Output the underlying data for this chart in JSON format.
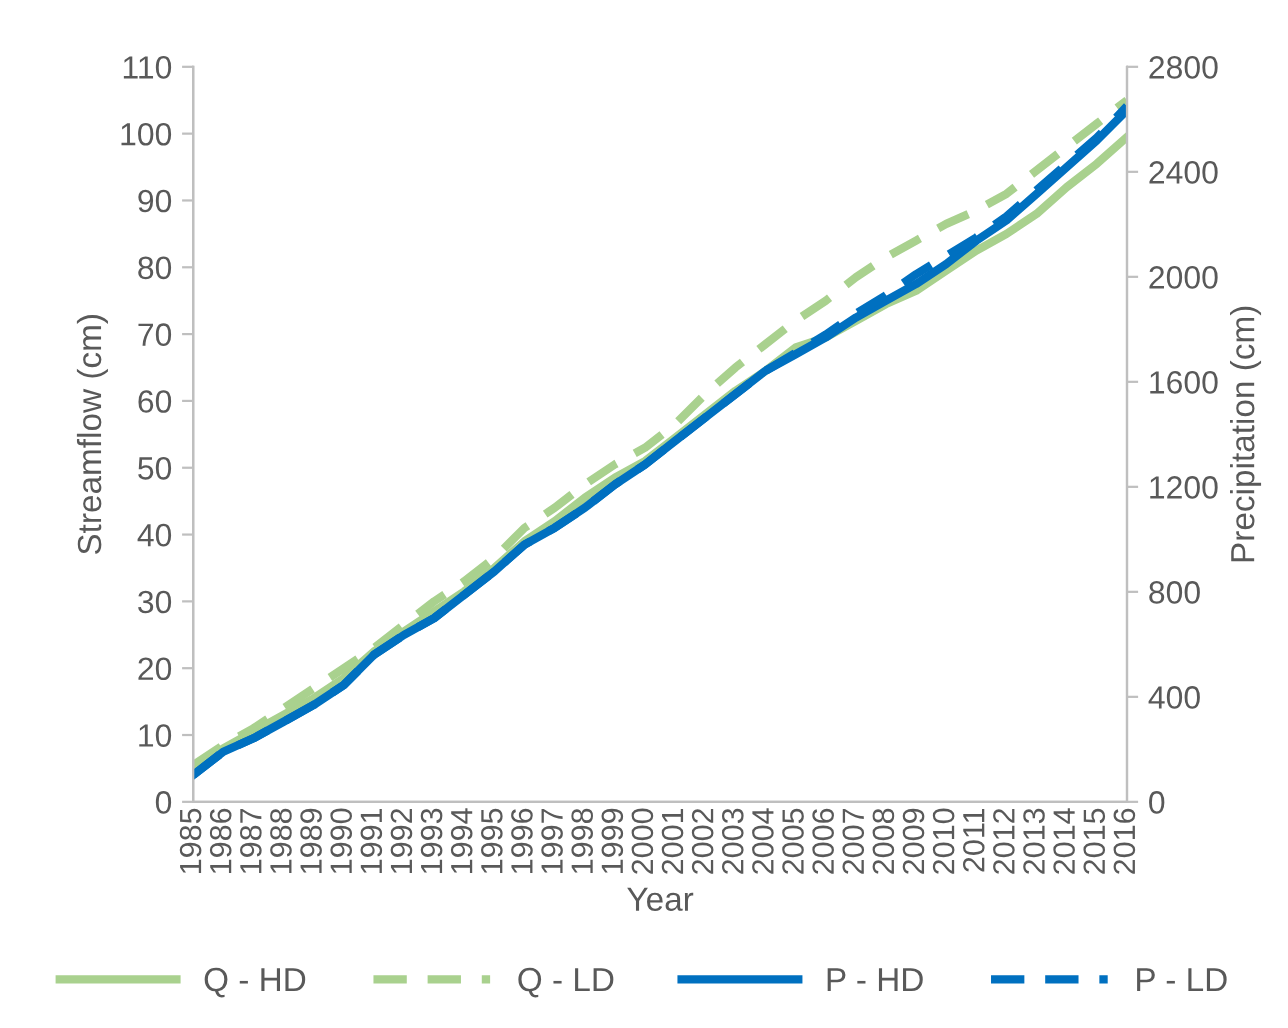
{
  "chart_data": {
    "type": "line",
    "xlabel": "Year",
    "ylabel": "Streamflow (cm)",
    "y2label": "Precipitation (cm)",
    "categories": [
      "1985",
      "1986",
      "1987",
      "1988",
      "1989",
      "1990",
      "1991",
      "1992",
      "1993",
      "1994",
      "1995",
      "1996",
      "1997",
      "1998",
      "1999",
      "2000",
      "2001",
      "2002",
      "2003",
      "2004",
      "2005",
      "2006",
      "2007",
      "2008",
      "2009",
      "2010",
      "2011",
      "2012",
      "2013",
      "2014",
      "2015",
      "2016"
    ],
    "ylim": [
      0,
      110
    ],
    "yticks": [
      0,
      10,
      20,
      30,
      40,
      50,
      60,
      70,
      80,
      90,
      100,
      110
    ],
    "y2lim": [
      0,
      2800
    ],
    "y2ticks": [
      0,
      400,
      800,
      1200,
      1600,
      2000,
      2400,
      2800
    ],
    "grid": false,
    "legend": "bottom",
    "marker": "none",
    "series": [
      {
        "name": "Q - HD",
        "color": "#a9d18e",
        "line_style": "solid",
        "values": [
          5,
          8,
          10.5,
          13,
          15.5,
          18.5,
          22.5,
          25.5,
          28.5,
          31.5,
          35,
          39,
          42,
          45.5,
          48.5,
          51,
          54.5,
          58,
          61.5,
          64.5,
          68,
          69.5,
          72,
          74.5,
          76.5,
          79.5,
          82.5,
          85,
          88,
          92,
          95.5,
          99.5
        ]
      },
      {
        "name": "Q - LD",
        "color": "#a9d18e",
        "line_style": "dashed",
        "values": [
          5.5,
          8.5,
          11,
          14,
          17,
          20,
          23,
          26.5,
          30,
          33,
          36.5,
          41,
          44,
          47.5,
          50.5,
          53,
          56.5,
          61,
          65,
          68.5,
          72,
          75,
          78.5,
          81.5,
          84,
          86.5,
          88.5,
          91,
          94.5,
          98,
          101.5,
          105
        ]
      },
      {
        "name": "P - HD",
        "color": "#0070c0",
        "line_style": "solid",
        "axis": "y2",
        "values": [
          102,
          191,
          242,
          305,
          369,
          445,
          560,
          636,
          700,
          789,
          878,
          980,
          1044,
          1120,
          1209,
          1285,
          1375,
          1464,
          1553,
          1642,
          1705,
          1769,
          1845,
          1909,
          1973,
          2049,
          2138,
          2215,
          2316,
          2418,
          2520,
          2635
        ]
      },
      {
        "name": "P - LD",
        "color": "#0070c0",
        "line_style": "dashed",
        "axis": "y2",
        "values": [
          102,
          191,
          242,
          305,
          369,
          445,
          560,
          636,
          700,
          789,
          878,
          980,
          1044,
          1120,
          1209,
          1285,
          1375,
          1464,
          1553,
          1642,
          1710,
          1780,
          1860,
          1930,
          2010,
          2080,
          2150,
          2230,
          2330,
          2430,
          2530,
          2650
        ]
      }
    ]
  }
}
